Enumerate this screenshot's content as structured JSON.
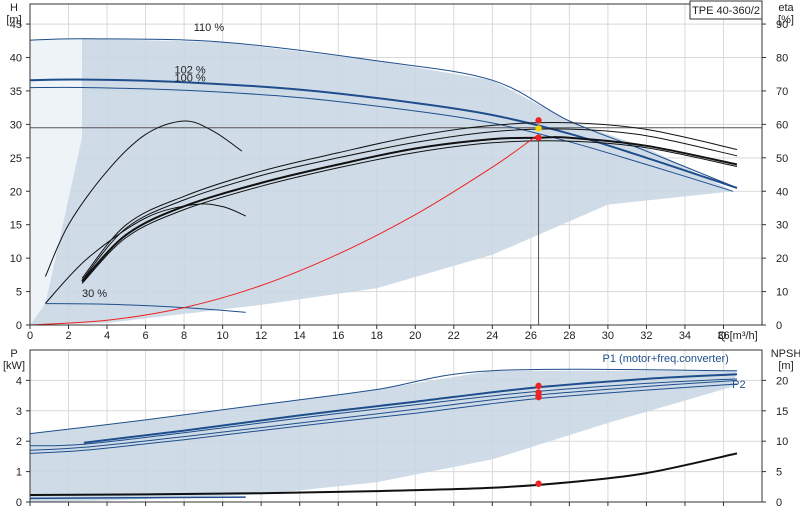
{
  "title_box": "TPE 40-360/2",
  "chart_data": [
    {
      "type": "line",
      "name": "head",
      "xlabel": "Q [m³/h]",
      "ylabel": "H\n[m]",
      "y2label": "eta\n[%]",
      "xlim": [
        0,
        38
      ],
      "ylim": [
        0,
        48
      ],
      "y2lim": [
        0,
        96
      ],
      "xticks": [
        0,
        2,
        4,
        6,
        8,
        10,
        12,
        14,
        16,
        18,
        20,
        22,
        24,
        26,
        28,
        30,
        32,
        34,
        36
      ],
      "yticks": [
        0,
        5,
        10,
        15,
        20,
        25,
        30,
        35,
        40,
        45
      ],
      "y2ticks": [
        0,
        10,
        20,
        30,
        40,
        50,
        60,
        70,
        80,
        90
      ],
      "grid": true,
      "annotations": [
        {
          "text": "110 %",
          "x": 8.5,
          "y": 44
        },
        {
          "text": "102 %",
          "x": 7.5,
          "y": 37.6
        },
        {
          "text": "100 %",
          "x": 7.5,
          "y": 36.4
        },
        {
          "text": "30 %",
          "x": 2.7,
          "y": 4.2
        }
      ],
      "region": {
        "upper": [
          [
            0,
            42.6
          ],
          [
            3,
            42.8
          ],
          [
            10,
            42.3
          ],
          [
            18,
            39.5
          ],
          [
            24,
            36.6
          ],
          [
            28,
            30.5
          ],
          [
            32,
            26.5
          ],
          [
            36.5,
            20
          ]
        ],
        "lower": [
          [
            36.5,
            20
          ],
          [
            30,
            18
          ],
          [
            24,
            10.5
          ],
          [
            18,
            5.5
          ],
          [
            12,
            3
          ],
          [
            4,
            0.3
          ],
          [
            0,
            0
          ]
        ]
      },
      "series": [
        {
          "name": "",
          "role": "qh",
          "color": "#1f4e8c",
          "width": 1,
          "x": [
            0,
            3,
            10,
            18,
            24,
            28,
            32,
            36.7
          ],
          "y": [
            42.6,
            42.8,
            42.3,
            39.5,
            36.6,
            30.5,
            26,
            20.5
          ]
        },
        {
          "name": "",
          "role": "qh",
          "color": "#1f4e8c",
          "width": 2,
          "x": [
            0,
            3,
            8,
            14,
            20,
            24,
            28,
            32,
            36.7
          ],
          "y": [
            36.6,
            36.7,
            36.3,
            35.2,
            33.2,
            31.4,
            28.6,
            25,
            20.5
          ]
        },
        {
          "name": "",
          "role": "qh",
          "color": "#1f4e8c",
          "width": 1,
          "x": [
            0,
            3,
            8,
            14,
            20,
            24,
            28,
            32,
            36.5
          ],
          "y": [
            35.5,
            35.5,
            35.1,
            34,
            32,
            30.2,
            27.4,
            24,
            20
          ]
        },
        {
          "name": "",
          "role": "qh",
          "color": "#1f4e8c",
          "width": 1,
          "x": [
            0.8,
            4,
            8,
            11.2
          ],
          "y": [
            3.2,
            3.1,
            2.6,
            1.9
          ]
        },
        {
          "name": "",
          "role": "eta",
          "color": "#111111",
          "width": 1,
          "x": [
            2.7,
            5,
            8,
            12,
            16,
            20,
            24,
            28,
            32,
            36.7
          ],
          "y": [
            14,
            30,
            38.5,
            46,
            51.5,
            56.5,
            59.7,
            60.5,
            58.5,
            52.5
          ]
        },
        {
          "name": "",
          "role": "eta",
          "color": "#111111",
          "width": 1,
          "x": [
            2.7,
            5,
            8,
            12,
            16,
            20,
            24,
            28,
            32,
            36.7
          ],
          "y": [
            13.4,
            29,
            37.4,
            44.7,
            50,
            54.6,
            57.8,
            58.6,
            56.6,
            50.6
          ]
        },
        {
          "name": "",
          "role": "eta",
          "color": "#111111",
          "width": 2,
          "x": [
            2.7,
            5,
            8,
            12,
            16,
            20,
            24,
            26.4,
            28,
            32,
            36.7
          ],
          "y": [
            13,
            27,
            35.5,
            42.5,
            48,
            52.8,
            55.6,
            56,
            56,
            53.6,
            48
          ]
        },
        {
          "name": "",
          "role": "eta",
          "color": "#111111",
          "width": 1,
          "x": [
            2.7,
            5,
            8,
            12,
            16,
            20,
            24,
            28,
            32,
            36.7
          ],
          "y": [
            12.4,
            26.2,
            34.5,
            41.5,
            47,
            51.6,
            54.5,
            55,
            53,
            47.4
          ]
        },
        {
          "name": "",
          "role": "eta",
          "color": "#111111",
          "width": 1,
          "x": [
            0.8,
            2,
            4,
            6,
            8,
            9.5,
            11
          ],
          "y": [
            14.5,
            30,
            46,
            57,
            61,
            58,
            52
          ]
        },
        {
          "name": "",
          "role": "eta",
          "color": "#111111",
          "width": 1,
          "x": [
            0.8,
            3,
            6,
            8.5,
            10,
            11.2
          ],
          "y": [
            6.5,
            20,
            32,
            36,
            35.4,
            32.6
          ]
        },
        {
          "name": "",
          "role": "system",
          "color": "#ee2222",
          "width": 1,
          "x": [
            0,
            4,
            8,
            12,
            16,
            20,
            24,
            26.4
          ],
          "y": [
            0,
            0.7,
            2.6,
            5.9,
            10.6,
            16.5,
            23.6,
            28.5
          ]
        }
      ],
      "vline": {
        "x": 26.4,
        "ymax": 28
      },
      "hline": {
        "y": 29.5
      },
      "points": [
        {
          "x": 26.4,
          "y": 30.6,
          "color": "#ee2222"
        },
        {
          "x": 26.4,
          "y": 29.4,
          "color": "#f5d800"
        },
        {
          "x": 26.4,
          "y": 28,
          "color": "#ee2222"
        }
      ]
    },
    {
      "type": "line",
      "name": "power",
      "xlabel": "",
      "ylabel": "P\n[kW]",
      "y2label": "NPSH\n[m]",
      "xlim": [
        0,
        38
      ],
      "ylim": [
        0,
        5
      ],
      "y2lim": [
        0,
        25
      ],
      "yticks": [
        0,
        1,
        2,
        3,
        4
      ],
      "y2ticks": [
        0,
        5,
        10,
        15,
        20
      ],
      "grid": true,
      "labels": [
        {
          "text": "P1 (motor+freq.converter)",
          "x": 33,
          "y": 4.6
        },
        {
          "text": "P2",
          "x": 36.8,
          "y": 3.75
        }
      ],
      "region": {
        "upper": [
          [
            0,
            2.25
          ],
          [
            6,
            2.7
          ],
          [
            12,
            3.2
          ],
          [
            18,
            3.7
          ],
          [
            24,
            4.32
          ],
          [
            36.7,
            4.32
          ]
        ],
        "lower": [
          [
            36.5,
            3.8
          ],
          [
            30,
            2.6
          ],
          [
            24,
            1.4
          ],
          [
            18,
            0.65
          ],
          [
            12,
            0.25
          ],
          [
            4,
            0.05
          ],
          [
            0,
            0
          ]
        ]
      },
      "series": [
        {
          "name": "",
          "role": "p1",
          "color": "#1f4e8c",
          "width": 1,
          "x": [
            0,
            6,
            12,
            18,
            24,
            36.7
          ],
          "y": [
            2.25,
            2.7,
            3.2,
            3.7,
            4.32,
            4.32
          ]
        },
        {
          "name": "",
          "role": "p1",
          "color": "#1f4e8c",
          "width": 2,
          "x": [
            2.8,
            8,
            14,
            20,
            26,
            32,
            36.7
          ],
          "y": [
            1.95,
            2.35,
            2.85,
            3.3,
            3.75,
            4.05,
            4.2
          ]
        },
        {
          "name": "",
          "role": "p1",
          "color": "#1f4e8c",
          "width": 1,
          "x": [
            0,
            2.8,
            8,
            14,
            20,
            26,
            32,
            36.7
          ],
          "y": [
            1.85,
            1.9,
            2.28,
            2.76,
            3.2,
            3.62,
            3.9,
            4.05
          ]
        },
        {
          "name": "",
          "role": "p2",
          "color": "#1f4e8c",
          "width": 1,
          "x": [
            0,
            2.8,
            8,
            14,
            20,
            26,
            32,
            36.7
          ],
          "y": [
            1.7,
            1.8,
            2.15,
            2.6,
            3.05,
            3.5,
            3.8,
            4
          ]
        },
        {
          "name": "",
          "role": "p2",
          "color": "#1f4e8c",
          "width": 1,
          "x": [
            0,
            2.8,
            8,
            14,
            20,
            26,
            32,
            36.7
          ],
          "y": [
            1.6,
            1.7,
            2.05,
            2.5,
            2.92,
            3.38,
            3.68,
            3.88
          ]
        },
        {
          "name": "",
          "role": "npsh",
          "color": "#111111",
          "width": 2,
          "x": [
            0,
            6,
            12,
            18,
            24,
            28,
            32,
            36.7
          ],
          "y": [
            0.23,
            0.25,
            0.29,
            0.36,
            0.47,
            0.65,
            0.95,
            1.6
          ]
        },
        {
          "name": "",
          "role": "p30",
          "color": "#1f4e8c",
          "width": 1.5,
          "x": [
            0,
            11.2
          ],
          "y": [
            0.12,
            0.16
          ]
        }
      ],
      "points": [
        {
          "x": 26.4,
          "y": 3.82,
          "color": "#ee2222"
        },
        {
          "x": 26.4,
          "y": 3.6,
          "color": "#ee2222"
        },
        {
          "x": 26.4,
          "y": 3.45,
          "color": "#ee2222"
        },
        {
          "x": 26.4,
          "y": 0.6,
          "color": "#ee2222"
        }
      ]
    }
  ]
}
